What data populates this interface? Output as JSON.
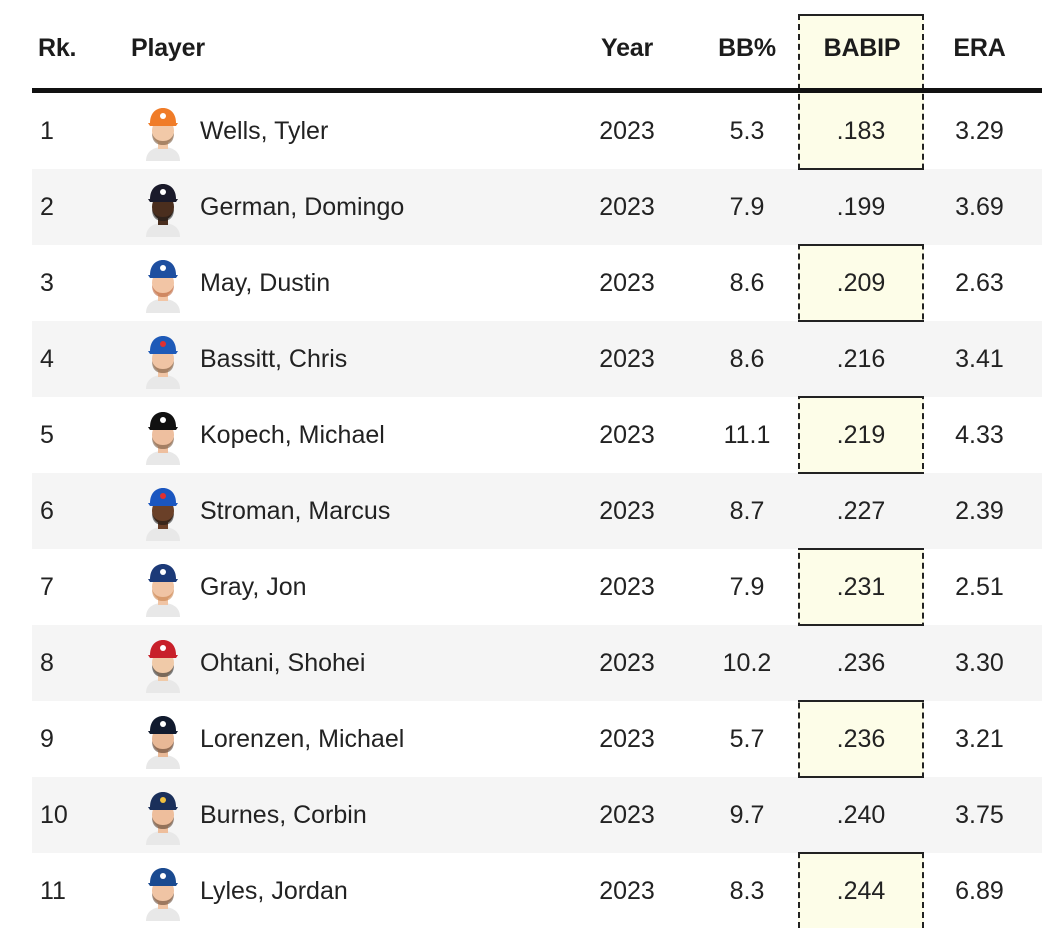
{
  "header": {
    "rank": "Rk.",
    "player": "Player",
    "year": "Year",
    "bb_pct": "BB%",
    "babip": "BABIP",
    "era": "ERA"
  },
  "colors": {
    "highlight_column": "#fdfde8",
    "alt_row": "#f5f5f5",
    "rule": "#111111"
  },
  "rows": [
    {
      "rank": "1",
      "player": "Wells, Tyler",
      "year": "2023",
      "bb_pct": "5.3",
      "babip": ".183",
      "era": "3.29",
      "cap": "#f07c28",
      "capmark": "#ffffff",
      "skin": "#f2c9a8",
      "hair": "#6b4b2e"
    },
    {
      "rank": "2",
      "player": "German, Domingo",
      "year": "2023",
      "bb_pct": "7.9",
      "babip": ".199",
      "era": "3.69",
      "cap": "#1a1a2a",
      "capmark": "#ffffff",
      "skin": "#4a2e1e",
      "hair": "#1a1a1a"
    },
    {
      "rank": "3",
      "player": "May, Dustin",
      "year": "2023",
      "bb_pct": "8.6",
      "babip": ".209",
      "era": "2.63",
      "cap": "#1e4fa0",
      "capmark": "#ffffff",
      "skin": "#f2c5a5",
      "hair": "#b5562a"
    },
    {
      "rank": "4",
      "player": "Bassitt, Chris",
      "year": "2023",
      "bb_pct": "8.6",
      "babip": ".216",
      "era": "3.41",
      "cap": "#1e5ab8",
      "capmark": "#e03030",
      "skin": "#f0c4a4",
      "hair": "#6b4a30"
    },
    {
      "rank": "5",
      "player": "Kopech, Michael",
      "year": "2023",
      "bb_pct": "11.1",
      "babip": ".219",
      "era": "4.33",
      "cap": "#111111",
      "capmark": "#ffffff",
      "skin": "#eebf9f",
      "hair": "#6a4a32"
    },
    {
      "rank": "6",
      "player": "Stroman, Marcus",
      "year": "2023",
      "bb_pct": "8.7",
      "babip": ".227",
      "era": "2.39",
      "cap": "#1a56c0",
      "capmark": "#e03030",
      "skin": "#6a4028",
      "hair": "#111111"
    },
    {
      "rank": "7",
      "player": "Gray, Jon",
      "year": "2023",
      "bb_pct": "7.9",
      "babip": ".231",
      "era": "2.51",
      "cap": "#1c3a78",
      "capmark": "#ffffff",
      "skin": "#f0c4a4",
      "hair": "#c47a40"
    },
    {
      "rank": "8",
      "player": "Ohtani, Shohei",
      "year": "2023",
      "bb_pct": "10.2",
      "babip": ".236",
      "era": "3.30",
      "cap": "#c8202a",
      "capmark": "#ffffff",
      "skin": "#f0caa8",
      "hair": "#1a1a1a"
    },
    {
      "rank": "9",
      "player": "Lorenzen, Michael",
      "year": "2023",
      "bb_pct": "5.7",
      "babip": ".236",
      "era": "3.21",
      "cap": "#111a2e",
      "capmark": "#ffffff",
      "skin": "#e8b896",
      "hair": "#4a3020"
    },
    {
      "rank": "10",
      "player": "Burnes, Corbin",
      "year": "2023",
      "bb_pct": "9.7",
      "babip": ".240",
      "era": "3.75",
      "cap": "#1a2f5a",
      "capmark": "#f0c040",
      "skin": "#eebe9c",
      "hair": "#4a3322"
    },
    {
      "rank": "11",
      "player": "Lyles, Jordan",
      "year": "2023",
      "bb_pct": "8.3",
      "babip": ".244",
      "era": "6.89",
      "cap": "#1a4a90",
      "capmark": "#ffffff",
      "skin": "#f0c4a4",
      "hair": "#5a3a26"
    }
  ]
}
